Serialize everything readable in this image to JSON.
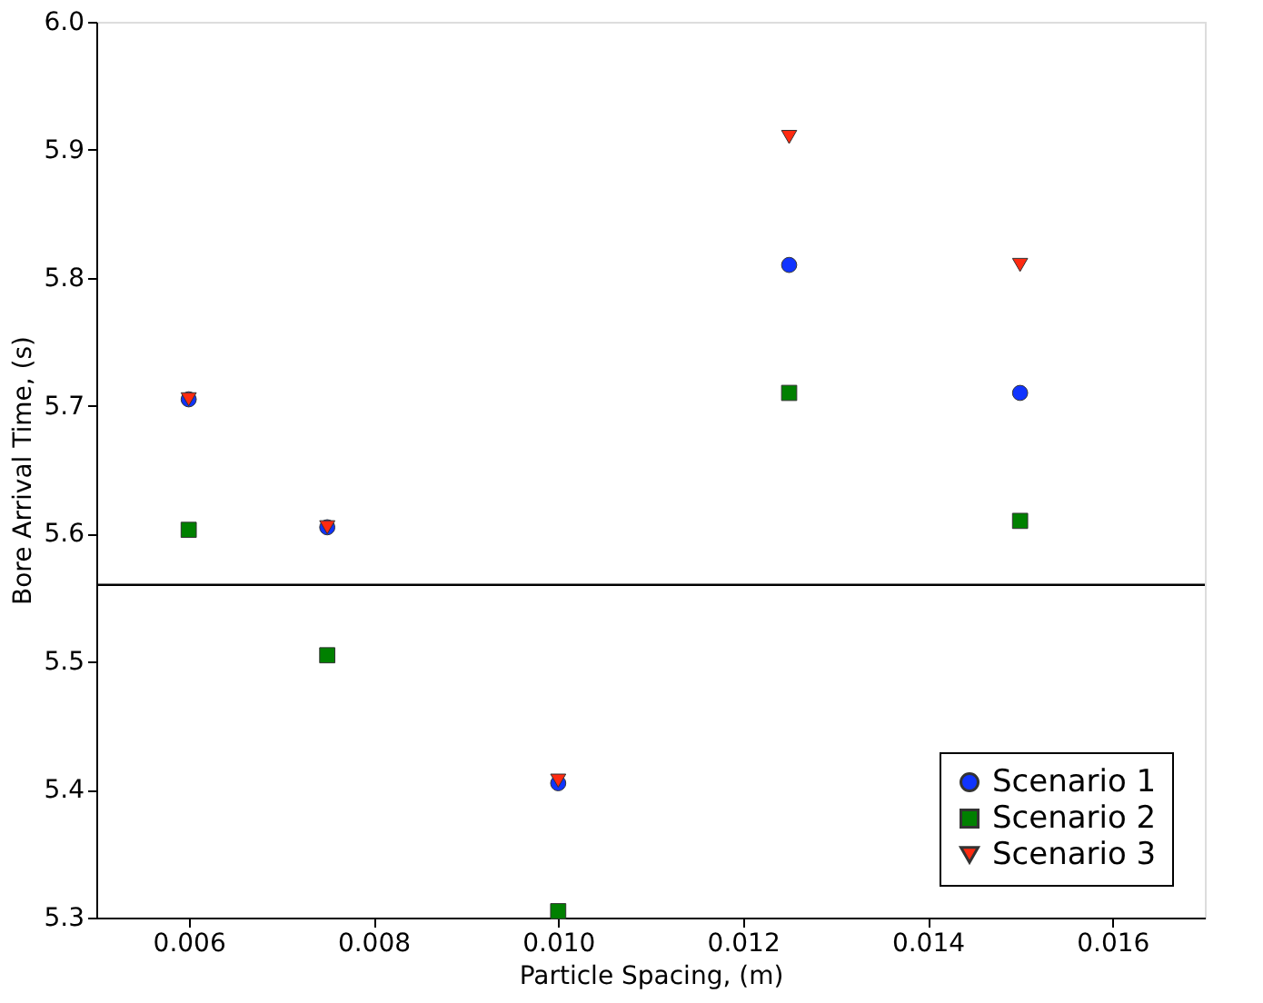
{
  "chart_data": {
    "type": "scatter",
    "xlabel": "Particle Spacing, (m)",
    "ylabel": "Bore Arrival Time, (s)",
    "x": [
      0.006,
      0.0075,
      0.01,
      0.0125,
      0.015
    ],
    "series": [
      {
        "name": "Scenario 1",
        "color": "#1034ff",
        "marker": "circle",
        "values": [
          5.705,
          5.605,
          5.405,
          5.81,
          5.71
        ]
      },
      {
        "name": "Scenario 2",
        "color": "#008000",
        "marker": "square",
        "values": [
          5.603,
          5.505,
          5.305,
          5.71,
          5.61
        ]
      },
      {
        "name": "Scenario 3",
        "color": "#ff2a10",
        "marker": "triangle",
        "values": [
          5.705,
          5.605,
          5.407,
          5.91,
          5.81
        ]
      }
    ],
    "xlim": [
      0.005,
      0.017
    ],
    "xticks": [
      0.006,
      0.008,
      {
        "value": 0.01,
        "label": "0.010"
      },
      0.012,
      0.014,
      0.016
    ],
    "ylim": [
      5.3,
      6.0
    ],
    "yticks": [
      5.3,
      5.4,
      5.5,
      5.6,
      5.7,
      5.8,
      5.9,
      {
        "value": 6,
        "label": "6.0"
      }
    ],
    "ref_lines": [
      {
        "axis": "y",
        "value": 5.56,
        "color": "#000000"
      }
    ],
    "grid": false,
    "legend": "bottom right"
  }
}
